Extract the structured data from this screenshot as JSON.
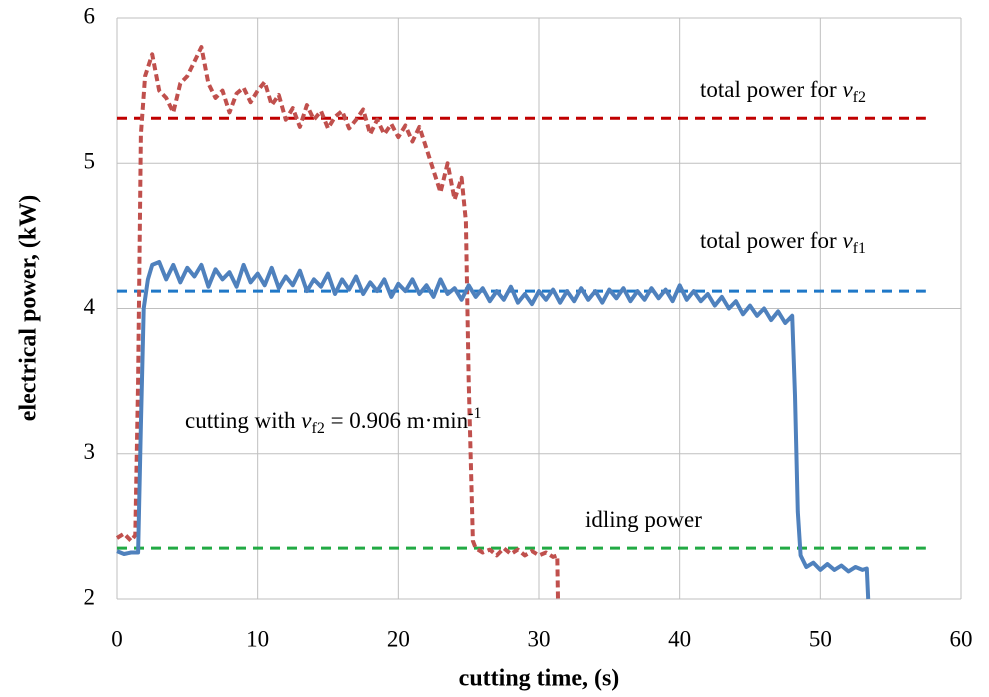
{
  "chart_data": {
    "type": "line",
    "x_label": "cutting time, (s)",
    "y_label": "electrical power, (kW)",
    "xlim": [
      0,
      60
    ],
    "xticks": [
      0,
      10,
      20,
      30,
      40,
      50,
      60
    ],
    "ylim": [
      2,
      6
    ],
    "yticks": [
      2,
      3,
      4,
      5,
      6
    ],
    "grid": true,
    "series": [
      {
        "color": "#c0504d",
        "dashed": true,
        "x": [
          0,
          0.5,
          1,
          1.3,
          1.5,
          1.7,
          2,
          2.5,
          3,
          3.5,
          4,
          4.5,
          5,
          5.5,
          6,
          6.5,
          7,
          7.5,
          8,
          8.5,
          9,
          9.5,
          10,
          10.5,
          11,
          11.5,
          12,
          12.5,
          13,
          13.5,
          14,
          14.5,
          15,
          15.5,
          16,
          16.5,
          17,
          17.5,
          18,
          18.5,
          19,
          19.5,
          20,
          20.5,
          21,
          21.5,
          22,
          22.5,
          23,
          23.5,
          24,
          24.5,
          24.8,
          25,
          25.3,
          25.5,
          26,
          26.5,
          27,
          27.5,
          28,
          28.5,
          29,
          29.5,
          30,
          30.5,
          31,
          31.3,
          31.35
        ],
        "values": [
          2.42,
          2.45,
          2.4,
          2.44,
          3.5,
          5.2,
          5.6,
          5.75,
          5.5,
          5.45,
          5.35,
          5.55,
          5.6,
          5.7,
          5.8,
          5.55,
          5.45,
          5.5,
          5.35,
          5.48,
          5.52,
          5.42,
          5.5,
          5.56,
          5.4,
          5.47,
          5.3,
          5.38,
          5.25,
          5.4,
          5.3,
          5.36,
          5.24,
          5.32,
          5.36,
          5.24,
          5.3,
          5.37,
          5.2,
          5.3,
          5.2,
          5.27,
          5.18,
          5.26,
          5.15,
          5.25,
          5.1,
          4.95,
          4.8,
          5.0,
          4.75,
          4.9,
          4.6,
          3.5,
          2.4,
          2.35,
          2.32,
          2.34,
          2.3,
          2.35,
          2.31,
          2.34,
          2.3,
          2.33,
          2.3,
          2.32,
          2.29,
          2.3,
          2.0
        ]
      },
      {
        "color": "#4f81bd",
        "dashed": false,
        "x": [
          0,
          0.5,
          1,
          1.5,
          1.7,
          1.9,
          2.2,
          2.5,
          3,
          3.5,
          4,
          4.5,
          5,
          5.5,
          6,
          6.5,
          7,
          7.5,
          8,
          8.5,
          9,
          9.5,
          10,
          10.5,
          11,
          11.5,
          12,
          12.5,
          13,
          13.5,
          14,
          14.5,
          15,
          15.5,
          16,
          16.5,
          17,
          17.5,
          18,
          18.5,
          19,
          19.5,
          20,
          20.5,
          21,
          21.5,
          22,
          22.5,
          23,
          23.5,
          24,
          24.5,
          25,
          25.5,
          26,
          26.5,
          27,
          27.5,
          28,
          28.5,
          29,
          29.5,
          30,
          30.5,
          31,
          31.5,
          32,
          32.5,
          33,
          33.5,
          34,
          34.5,
          35,
          35.5,
          36,
          36.5,
          37,
          37.5,
          38,
          38.5,
          39,
          39.5,
          40,
          40.5,
          41,
          41.5,
          42,
          42.5,
          43,
          43.5,
          44,
          44.5,
          45,
          45.5,
          46,
          46.5,
          47,
          47.5,
          48,
          48.2,
          48.4,
          48.6,
          49,
          49.5,
          50,
          50.5,
          51,
          51.5,
          52,
          52.5,
          53,
          53.3,
          53.4
        ],
        "values": [
          2.33,
          2.31,
          2.32,
          2.32,
          3.2,
          4.0,
          4.2,
          4.3,
          4.32,
          4.2,
          4.3,
          4.18,
          4.28,
          4.22,
          4.3,
          4.15,
          4.27,
          4.2,
          4.25,
          4.15,
          4.3,
          4.18,
          4.24,
          4.16,
          4.28,
          4.14,
          4.22,
          4.16,
          4.26,
          4.12,
          4.2,
          4.15,
          4.24,
          4.1,
          4.2,
          4.13,
          4.22,
          4.1,
          4.18,
          4.12,
          4.2,
          4.08,
          4.17,
          4.12,
          4.2,
          4.1,
          4.16,
          4.08,
          4.2,
          4.1,
          4.14,
          4.06,
          4.16,
          4.08,
          4.14,
          4.05,
          4.12,
          4.06,
          4.15,
          4.04,
          4.1,
          4.03,
          4.12,
          4.06,
          4.13,
          4.04,
          4.12,
          4.05,
          4.14,
          4.06,
          4.12,
          4.04,
          4.13,
          4.07,
          4.14,
          4.05,
          4.12,
          4.06,
          4.14,
          4.07,
          4.13,
          4.05,
          4.16,
          4.06,
          4.12,
          4.05,
          4.1,
          4.02,
          4.08,
          4.0,
          4.05,
          3.96,
          4.02,
          3.95,
          4.0,
          3.92,
          3.98,
          3.9,
          3.95,
          3.4,
          2.6,
          2.3,
          2.22,
          2.25,
          2.2,
          2.24,
          2.2,
          2.23,
          2.19,
          2.22,
          2.2,
          2.21,
          2.0
        ]
      }
    ],
    "hlines": [
      {
        "value": 5.31,
        "color": "#c00000",
        "x": [
          0,
          57.5
        ]
      },
      {
        "value": 4.12,
        "color": "#1f78c8",
        "x": [
          0,
          57.5
        ]
      },
      {
        "value": 2.35,
        "color": "#22aa44",
        "x": [
          0,
          57.5
        ]
      }
    ],
    "annotations": [
      {
        "text": "total power for ",
        "symbol": "v",
        "subscript": "f2"
      },
      {
        "text": "total power for ",
        "symbol": "v",
        "subscript": "f1"
      },
      {
        "text": "cutting with ",
        "symbol": "v",
        "subscript": "f2",
        "suffix": " = 0.906 m·min",
        "superscript": "-1"
      },
      {
        "text": "idling power"
      }
    ]
  }
}
